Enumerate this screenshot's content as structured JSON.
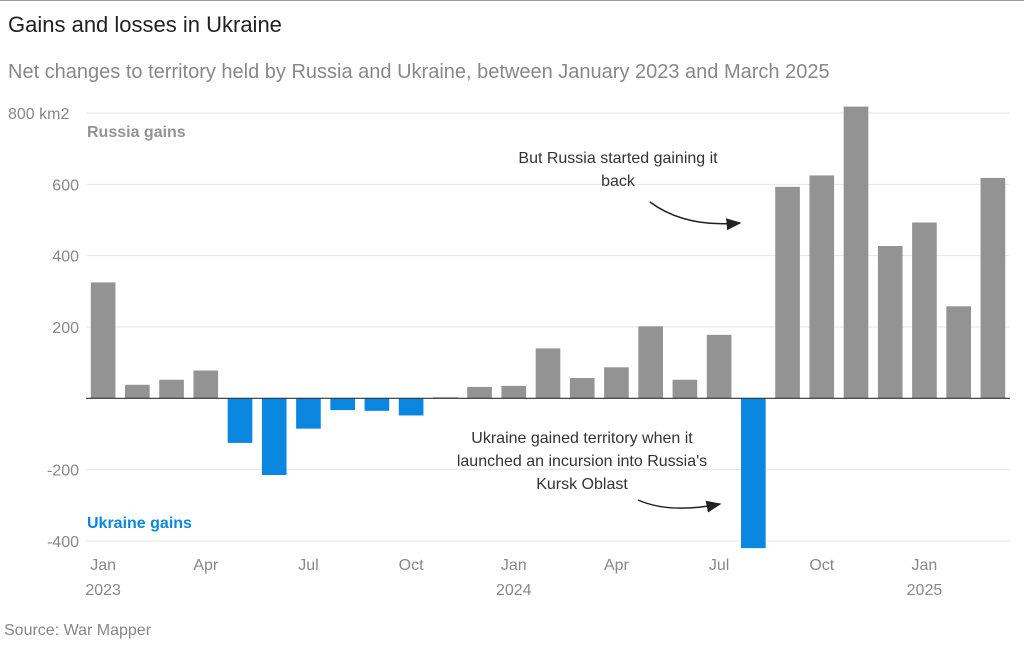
{
  "header": {
    "title": "Gains and losses in Ukraine",
    "subtitle": "Net changes to territory held by Russia and Ukraine, between January 2023 and March 2025"
  },
  "footer": {
    "source": "Source: War Mapper"
  },
  "colors": {
    "russia": "#939393",
    "ukraine": "#0a87e0",
    "grid": "#e6e6e6",
    "axis": "#333333"
  },
  "chart_data": {
    "type": "bar",
    "title": "Gains and losses in Ukraine",
    "subtitle": "Net changes to territory held by Russia and Ukraine, between January 2023 and March 2025",
    "xlabel": "",
    "ylabel": "km2",
    "ylim": [
      -400,
      800
    ],
    "yticks": [
      {
        "value": 800,
        "label": "800 km2"
      },
      {
        "value": 600,
        "label": "600"
      },
      {
        "value": 400,
        "label": "400"
      },
      {
        "value": 200,
        "label": "200"
      },
      {
        "value": -200,
        "label": "-200"
      },
      {
        "value": -400,
        "label": "-400"
      }
    ],
    "grid": true,
    "categories": [
      "2023-01",
      "2023-02",
      "2023-03",
      "2023-04",
      "2023-05",
      "2023-06",
      "2023-07",
      "2023-08",
      "2023-09",
      "2023-10",
      "2023-11",
      "2023-12",
      "2024-01",
      "2024-02",
      "2024-03",
      "2024-04",
      "2024-05",
      "2024-06",
      "2024-07",
      "2024-08",
      "2024-09",
      "2024-10",
      "2024-11",
      "2024-12",
      "2025-01",
      "2025-02",
      "2025-03"
    ],
    "values": [
      325,
      38,
      52,
      78,
      -125,
      -215,
      -85,
      -33,
      -35,
      -48,
      3,
      32,
      35,
      140,
      57,
      87,
      202,
      52,
      178,
      -420,
      593,
      625,
      818,
      427,
      493,
      258,
      618
    ],
    "xticks": [
      {
        "index": 0,
        "label": "Jan",
        "sublabel": "2023"
      },
      {
        "index": 3,
        "label": "Apr",
        "sublabel": ""
      },
      {
        "index": 6,
        "label": "Jul",
        "sublabel": ""
      },
      {
        "index": 9,
        "label": "Oct",
        "sublabel": ""
      },
      {
        "index": 12,
        "label": "Jan",
        "sublabel": "2024"
      },
      {
        "index": 15,
        "label": "Apr",
        "sublabel": ""
      },
      {
        "index": 18,
        "label": "Jul",
        "sublabel": ""
      },
      {
        "index": 21,
        "label": "Oct",
        "sublabel": ""
      },
      {
        "index": 24,
        "label": "Jan",
        "sublabel": "2025"
      }
    ],
    "legend": [
      {
        "name": "Russia gains",
        "color": "#939393",
        "placement": "top-left"
      },
      {
        "name": "Ukraine gains",
        "color": "#0a87e0",
        "placement": "bottom-left"
      }
    ],
    "annotations": [
      {
        "text_lines": [
          "But Russia started gaining it",
          "back"
        ],
        "points_to": "2024-09"
      },
      {
        "text_lines": [
          "Ukraine gained territory when it",
          "launched an incursion into Russia's",
          "Kursk Oblast"
        ],
        "points_to": "2024-08"
      }
    ]
  }
}
